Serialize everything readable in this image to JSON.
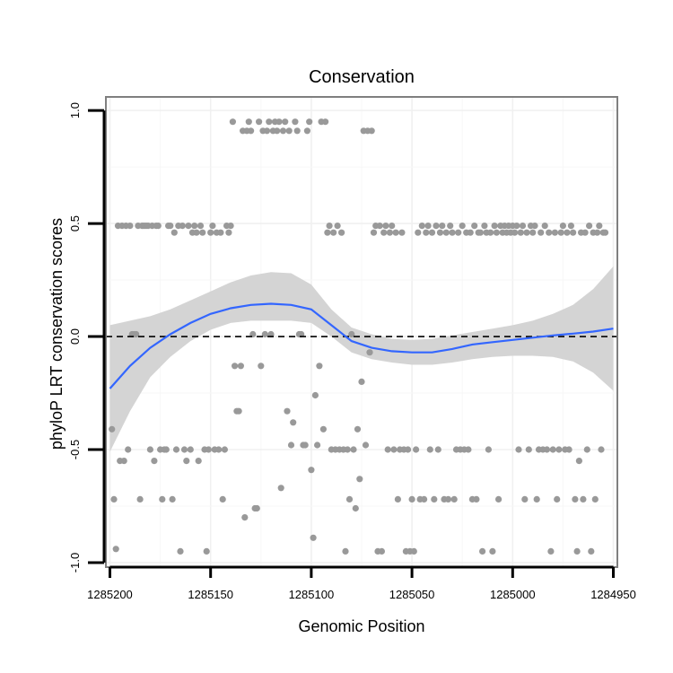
{
  "chart_data": {
    "type": "scatter",
    "title": "Conservation",
    "xlabel": "Genomic Position",
    "ylabel": "phyloP LRT conservation scores",
    "x_reversed": true,
    "xlim": [
      1285202,
      1284948
    ],
    "ylim": [
      -1.02,
      1.06
    ],
    "x_ticks": [
      1285200,
      1285150,
      1285100,
      1285050,
      1285000,
      1284950
    ],
    "x_tick_labels": [
      "1285200",
      "1285150",
      "1285100",
      "1285050",
      "1285000",
      "1284950"
    ],
    "y_ticks": [
      -1.0,
      -0.5,
      0.0,
      0.5,
      1.0
    ],
    "y_tick_labels": [
      "-1.0",
      "-0.5",
      "0.0",
      "0.5",
      "1.0"
    ],
    "grid": true,
    "reference_line": {
      "y": 0,
      "style": "dashed",
      "color": "#000000"
    },
    "point_color": "#999999",
    "smooth_color": "#3366ff",
    "band_color": "#d4d4d4",
    "points": [
      [
        1285199,
        -0.41
      ],
      [
        1285198,
        -0.72
      ],
      [
        1285197,
        -0.94
      ],
      [
        1285196,
        0.49
      ],
      [
        1285195,
        -0.55
      ],
      [
        1285194,
        0.49
      ],
      [
        1285193,
        -0.55
      ],
      [
        1285192,
        0.49
      ],
      [
        1285191,
        -0.5
      ],
      [
        1285190,
        0.49
      ],
      [
        1285189,
        0.01
      ],
      [
        1285188,
        0.01
      ],
      [
        1285187,
        0.01
      ],
      [
        1285186,
        0.49
      ],
      [
        1285185,
        -0.72
      ],
      [
        1285184,
        0.49
      ],
      [
        1285183,
        0.49
      ],
      [
        1285182,
        0.49
      ],
      [
        1285181,
        0.49
      ],
      [
        1285180,
        -0.5
      ],
      [
        1285179,
        0.49
      ],
      [
        1285178,
        -0.55
      ],
      [
        1285177,
        0.49
      ],
      [
        1285176,
        0.49
      ],
      [
        1285175,
        -0.5
      ],
      [
        1285174,
        -0.72
      ],
      [
        1285173,
        -0.5
      ],
      [
        1285172,
        -0.5
      ],
      [
        1285171,
        0.49
      ],
      [
        1285170,
        0.49
      ],
      [
        1285169,
        -0.72
      ],
      [
        1285168,
        0.46
      ],
      [
        1285167,
        -0.5
      ],
      [
        1285166,
        0.49
      ],
      [
        1285165,
        -0.95
      ],
      [
        1285164,
        0.49
      ],
      [
        1285163,
        -0.5
      ],
      [
        1285162,
        -0.55
      ],
      [
        1285161,
        0.49
      ],
      [
        1285160,
        -0.5
      ],
      [
        1285159,
        0.46
      ],
      [
        1285158,
        0.49
      ],
      [
        1285157,
        0.46
      ],
      [
        1285156,
        -0.55
      ],
      [
        1285155,
        0.49
      ],
      [
        1285154,
        0.46
      ],
      [
        1285153,
        -0.5
      ],
      [
        1285152,
        -0.95
      ],
      [
        1285151,
        -0.5
      ],
      [
        1285150,
        0.46
      ],
      [
        1285149,
        0.49
      ],
      [
        1285148,
        -0.5
      ],
      [
        1285147,
        0.46
      ],
      [
        1285146,
        -0.5
      ],
      [
        1285145,
        0.46
      ],
      [
        1285144,
        -0.72
      ],
      [
        1285143,
        -0.5
      ],
      [
        1285142,
        0.49
      ],
      [
        1285141,
        0.46
      ],
      [
        1285140,
        0.49
      ],
      [
        1285139,
        0.95
      ],
      [
        1285138,
        -0.13
      ],
      [
        1285137,
        -0.33
      ],
      [
        1285136,
        -0.33
      ],
      [
        1285135,
        -0.13
      ],
      [
        1285134,
        0.91
      ],
      [
        1285133,
        -0.8
      ],
      [
        1285132,
        0.91
      ],
      [
        1285131,
        0.95
      ],
      [
        1285130,
        0.91
      ],
      [
        1285129,
        0.01
      ],
      [
        1285128,
        -0.76
      ],
      [
        1285127,
        -0.76
      ],
      [
        1285126,
        0.95
      ],
      [
        1285125,
        -0.13
      ],
      [
        1285124,
        0.91
      ],
      [
        1285123,
        0.01
      ],
      [
        1285122,
        0.91
      ],
      [
        1285121,
        0.95
      ],
      [
        1285120,
        0.01
      ],
      [
        1285119,
        0.91
      ],
      [
        1285118,
        0.95
      ],
      [
        1285117,
        0.91
      ],
      [
        1285116,
        0.95
      ],
      [
        1285115,
        -0.67
      ],
      [
        1285114,
        0.91
      ],
      [
        1285113,
        0.95
      ],
      [
        1285112,
        -0.33
      ],
      [
        1285111,
        0.91
      ],
      [
        1285110,
        -0.48
      ],
      [
        1285109,
        -0.38
      ],
      [
        1285108,
        0.95
      ],
      [
        1285107,
        0.91
      ],
      [
        1285106,
        0.01
      ],
      [
        1285105,
        0.01
      ],
      [
        1285104,
        -0.48
      ],
      [
        1285103,
        -0.48
      ],
      [
        1285102,
        0.91
      ],
      [
        1285101,
        0.95
      ],
      [
        1285100,
        -0.59
      ],
      [
        1285099,
        -0.89
      ],
      [
        1285098,
        -0.26
      ],
      [
        1285097,
        -0.48
      ],
      [
        1285096,
        -0.13
      ],
      [
        1285095,
        0.95
      ],
      [
        1285094,
        -0.41
      ],
      [
        1285093,
        0.95
      ],
      [
        1285092,
        0.46
      ],
      [
        1285091,
        0.49
      ],
      [
        1285090,
        -0.5
      ],
      [
        1285089,
        0.46
      ],
      [
        1285088,
        -0.5
      ],
      [
        1285087,
        0.49
      ],
      [
        1285086,
        -0.5
      ],
      [
        1285085,
        0.46
      ],
      [
        1285084,
        -0.5
      ],
      [
        1285083,
        -0.95
      ],
      [
        1285082,
        -0.5
      ],
      [
        1285081,
        -0.72
      ],
      [
        1285080,
        0.01
      ],
      [
        1285079,
        -0.5
      ],
      [
        1285078,
        -0.76
      ],
      [
        1285077,
        -0.41
      ],
      [
        1285076,
        -0.63
      ],
      [
        1285075,
        -0.2
      ],
      [
        1285074,
        0.91
      ],
      [
        1285073,
        -0.48
      ],
      [
        1285072,
        0.91
      ],
      [
        1285071,
        -0.07
      ],
      [
        1285070,
        0.91
      ],
      [
        1285069,
        0.46
      ],
      [
        1285068,
        0.49
      ],
      [
        1285067,
        -0.95
      ],
      [
        1285066,
        0.49
      ],
      [
        1285065,
        -0.95
      ],
      [
        1285064,
        0.46
      ],
      [
        1285063,
        0.49
      ],
      [
        1285062,
        -0.5
      ],
      [
        1285061,
        0.46
      ],
      [
        1285060,
        0.49
      ],
      [
        1285059,
        -0.5
      ],
      [
        1285058,
        0.46
      ],
      [
        1285057,
        -0.72
      ],
      [
        1285056,
        -0.5
      ],
      [
        1285055,
        0.46
      ],
      [
        1285054,
        -0.5
      ],
      [
        1285053,
        -0.95
      ],
      [
        1285052,
        -0.5
      ],
      [
        1285051,
        -0.95
      ],
      [
        1285050,
        -0.72
      ],
      [
        1285049,
        -0.95
      ],
      [
        1285048,
        -0.5
      ],
      [
        1285047,
        0.46
      ],
      [
        1285046,
        -0.72
      ],
      [
        1285045,
        0.49
      ],
      [
        1285044,
        -0.72
      ],
      [
        1285043,
        0.46
      ],
      [
        1285042,
        0.49
      ],
      [
        1285041,
        -0.5
      ],
      [
        1285040,
        0.46
      ],
      [
        1285039,
        -0.72
      ],
      [
        1285038,
        0.49
      ],
      [
        1285037,
        -0.5
      ],
      [
        1285036,
        0.46
      ],
      [
        1285035,
        0.49
      ],
      [
        1285034,
        -0.72
      ],
      [
        1285033,
        0.46
      ],
      [
        1285032,
        -0.72
      ],
      [
        1285031,
        0.49
      ],
      [
        1285030,
        0.46
      ],
      [
        1285029,
        -0.72
      ],
      [
        1285028,
        -0.5
      ],
      [
        1285027,
        0.46
      ],
      [
        1285026,
        -0.5
      ],
      [
        1285025,
        0.49
      ],
      [
        1285024,
        -0.5
      ],
      [
        1285023,
        0.46
      ],
      [
        1285022,
        -0.5
      ],
      [
        1285021,
        0.46
      ],
      [
        1285020,
        -0.72
      ],
      [
        1285019,
        0.49
      ],
      [
        1285018,
        -0.72
      ],
      [
        1285017,
        0.46
      ],
      [
        1285016,
        0.46
      ],
      [
        1285015,
        -0.95
      ],
      [
        1285014,
        0.49
      ],
      [
        1285013,
        0.46
      ],
      [
        1285012,
        -0.5
      ],
      [
        1285011,
        0.46
      ],
      [
        1285010,
        -0.95
      ],
      [
        1285009,
        0.49
      ],
      [
        1285008,
        0.46
      ],
      [
        1285007,
        -0.72
      ],
      [
        1285006,
        0.49
      ],
      [
        1285005,
        0.46
      ],
      [
        1285004,
        0.49
      ],
      [
        1285003,
        0.46
      ],
      [
        1285002,
        0.49
      ],
      [
        1285001,
        0.46
      ],
      [
        1285000,
        0.49
      ],
      [
        1284999,
        0.46
      ],
      [
        1284998,
        0.49
      ],
      [
        1284997,
        -0.5
      ],
      [
        1284996,
        0.46
      ],
      [
        1284995,
        0.49
      ],
      [
        1284994,
        -0.72
      ],
      [
        1284993,
        0.46
      ],
      [
        1284992,
        -0.5
      ],
      [
        1284991,
        0.49
      ],
      [
        1284990,
        0.46
      ],
      [
        1284989,
        0.49
      ],
      [
        1284988,
        -0.72
      ],
      [
        1284987,
        -0.5
      ],
      [
        1284986,
        0.46
      ],
      [
        1284985,
        -0.5
      ],
      [
        1284984,
        0.49
      ],
      [
        1284983,
        -0.5
      ],
      [
        1284982,
        0.46
      ],
      [
        1284981,
        -0.95
      ],
      [
        1284980,
        -0.5
      ],
      [
        1284979,
        0.46
      ],
      [
        1284978,
        -0.72
      ],
      [
        1284977,
        -0.5
      ],
      [
        1284976,
        0.46
      ],
      [
        1284975,
        0.49
      ],
      [
        1284974,
        -0.5
      ],
      [
        1284973,
        0.46
      ],
      [
        1284972,
        -0.5
      ],
      [
        1284971,
        0.49
      ],
      [
        1284970,
        0.46
      ],
      [
        1284969,
        -0.72
      ],
      [
        1284968,
        -0.95
      ],
      [
        1284967,
        -0.55
      ],
      [
        1284966,
        0.46
      ],
      [
        1284965,
        -0.72
      ],
      [
        1284964,
        0.46
      ],
      [
        1284963,
        -0.5
      ],
      [
        1284962,
        0.49
      ],
      [
        1284961,
        -0.95
      ],
      [
        1284960,
        0.46
      ],
      [
        1284959,
        -0.72
      ],
      [
        1284958,
        0.46
      ],
      [
        1284957,
        0.49
      ],
      [
        1284956,
        -0.5
      ],
      [
        1284955,
        0.46
      ],
      [
        1284954,
        0.46
      ]
    ],
    "smooth": {
      "x": [
        1285200,
        1285190,
        1285180,
        1285170,
        1285160,
        1285150,
        1285140,
        1285130,
        1285120,
        1285110,
        1285100,
        1285090,
        1285080,
        1285070,
        1285060,
        1285050,
        1285040,
        1285030,
        1285020,
        1285010,
        1285000,
        1284990,
        1284980,
        1284970,
        1284960,
        1284950
      ],
      "y": [
        -0.23,
        -0.13,
        -0.05,
        0.01,
        0.06,
        0.1,
        0.125,
        0.14,
        0.145,
        0.14,
        0.12,
        0.05,
        -0.02,
        -0.05,
        -0.065,
        -0.07,
        -0.07,
        -0.055,
        -0.035,
        -0.025,
        -0.015,
        -0.005,
        0.005,
        0.013,
        0.022,
        0.035
      ],
      "lower": [
        -0.51,
        -0.33,
        -0.18,
        -0.09,
        -0.02,
        0.03,
        0.06,
        0.07,
        0.07,
        0.07,
        0.06,
        0.0,
        -0.07,
        -0.1,
        -0.115,
        -0.125,
        -0.125,
        -0.115,
        -0.1,
        -0.09,
        -0.085,
        -0.085,
        -0.09,
        -0.11,
        -0.16,
        -0.24
      ],
      "upper": [
        0.05,
        0.07,
        0.09,
        0.12,
        0.16,
        0.2,
        0.24,
        0.27,
        0.285,
        0.28,
        0.23,
        0.12,
        0.04,
        0.01,
        -0.01,
        -0.015,
        -0.01,
        0.005,
        0.02,
        0.035,
        0.05,
        0.07,
        0.1,
        0.14,
        0.21,
        0.31
      ]
    }
  }
}
